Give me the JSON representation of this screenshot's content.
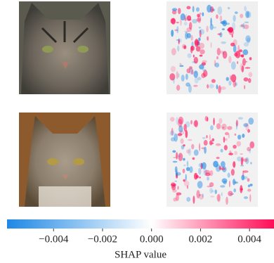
{
  "chart_data": {
    "type": "shap-image",
    "colorbar_label": "SHAP value",
    "clim": [
      -0.0059,
      0.005
    ],
    "cticks": [
      {
        "value": -0.004,
        "label": "−0.004"
      },
      {
        "value": -0.002,
        "label": "−0.002"
      },
      {
        "value": 0,
        "label": "0.000"
      },
      0.002,
      0.004
    ],
    "colors": [
      "#1e88e5",
      "#ffffff",
      "#ff0d57"
    ]
  }
}
